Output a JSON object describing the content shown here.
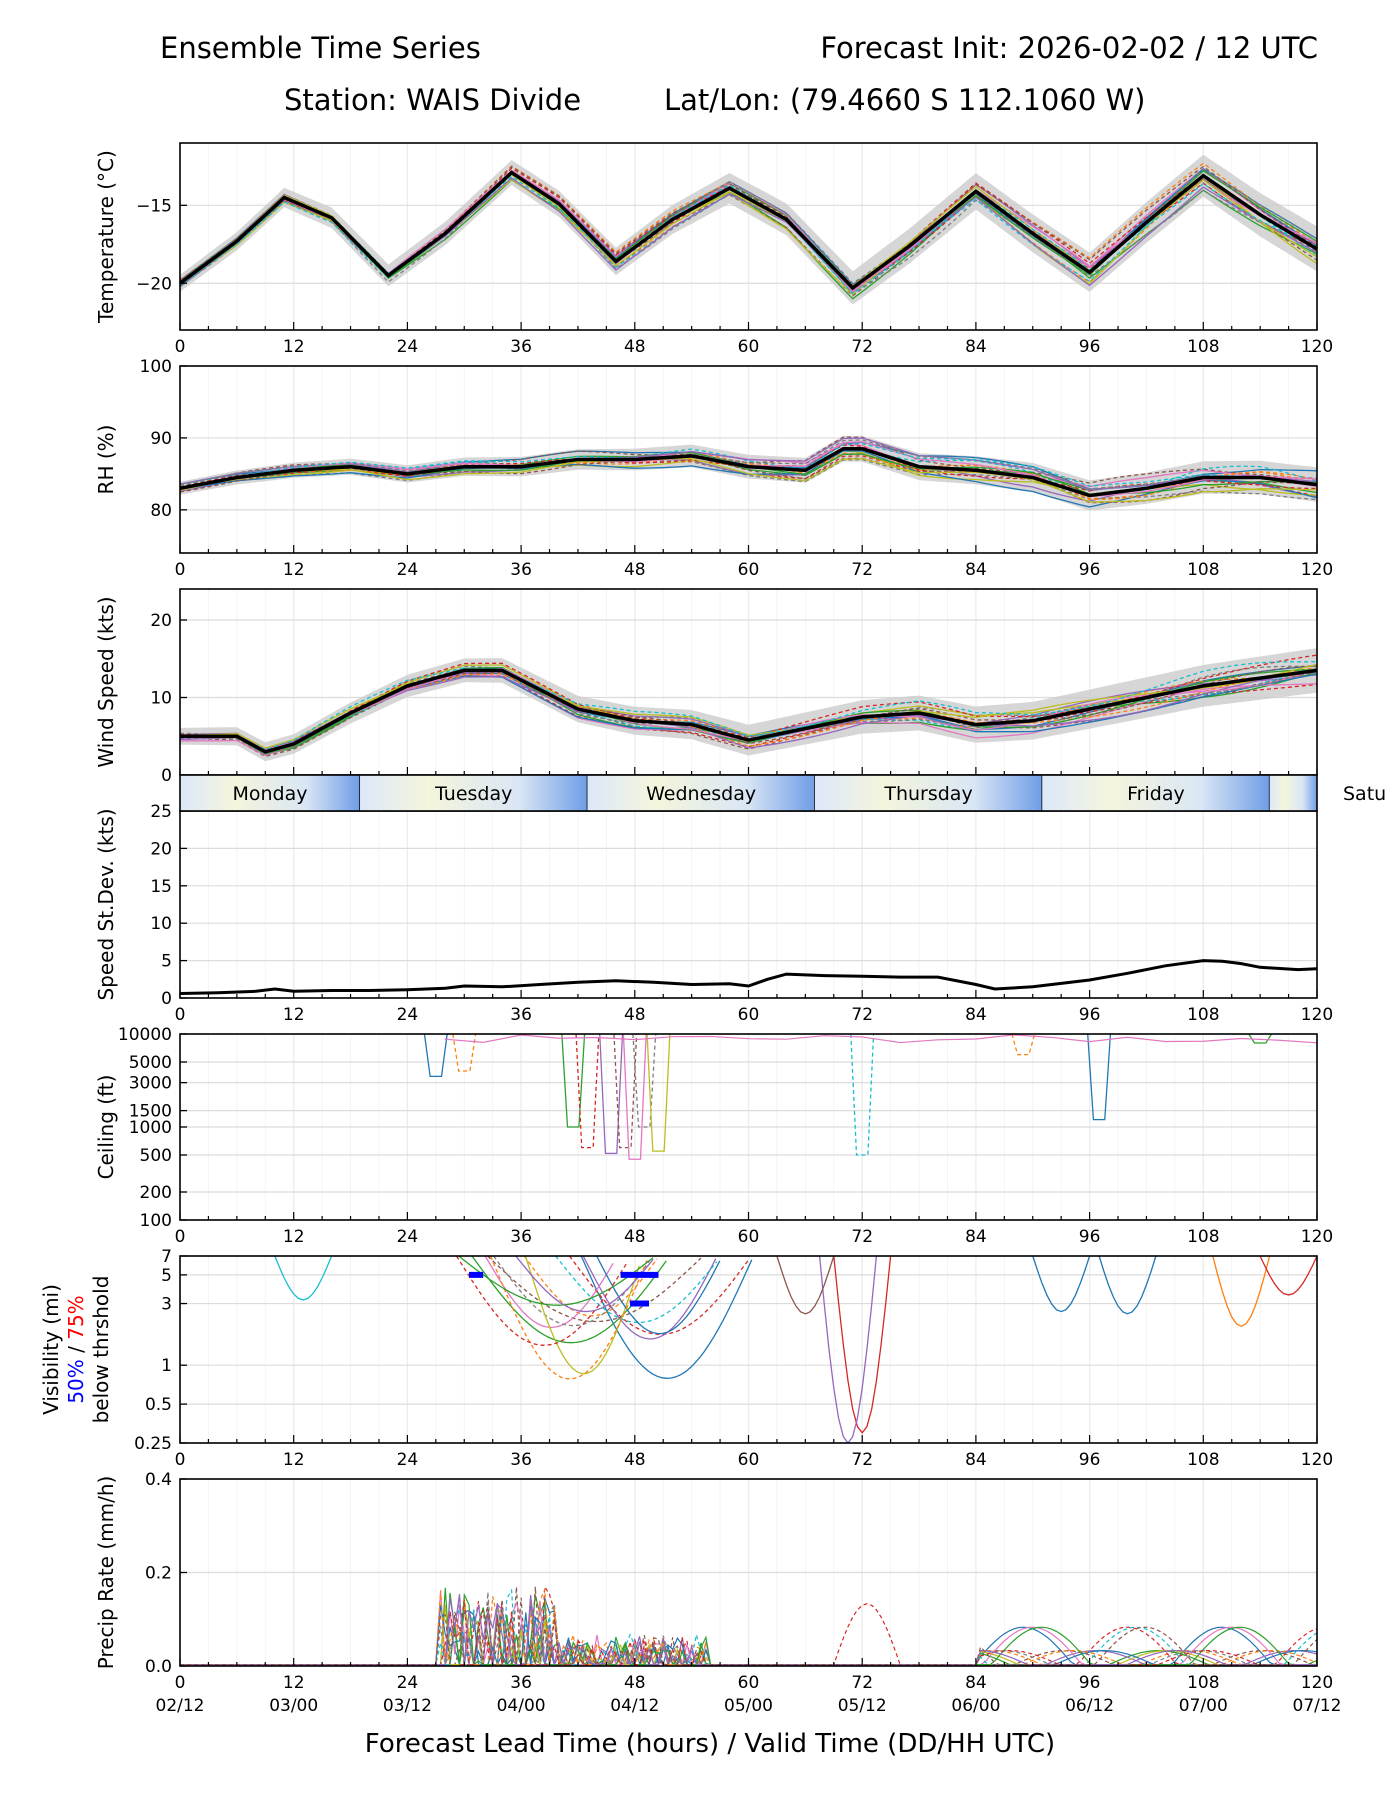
{
  "title": {
    "left": "Ensemble Time Series",
    "right": "Forecast Init: 2026-02-02 / 12 UTC",
    "station": "Station: WAIS Divide",
    "latlon": "Lat/Lon: (79.4660 S 112.1060 W)"
  },
  "xlabel": "Forecast Lead Time (hours) / Valid Time (DD/HH UTC)",
  "colors": {
    "mean": "#000000",
    "spread": "#cccccc",
    "members": [
      "#1f77b4",
      "#ff7f0e",
      "#2ca02c",
      "#d62728",
      "#9467bd",
      "#8c564b",
      "#e377c2",
      "#7f7f7f",
      "#bcbd22",
      "#17becf"
    ],
    "vis50": "#0000ff",
    "vis75": "#ff0000"
  },
  "days": [
    "Monday",
    "Tuesday",
    "Wednesday",
    "Thursday",
    "Friday",
    "Satu"
  ],
  "chart_data": [
    {
      "type": "line",
      "id": "temperature",
      "ylabel": "Temperature (°C)",
      "ylim": [
        -23,
        -11
      ],
      "yticks": [
        -20,
        -15
      ],
      "x_ticks": [
        0,
        12,
        24,
        36,
        48,
        60,
        72,
        84,
        96,
        108,
        120
      ],
      "xlim": [
        0,
        120
      ],
      "valid_time_labels": [],
      "ensemble_members": 20,
      "mean_series": {
        "x": [
          0,
          6,
          11,
          16,
          22,
          28,
          35,
          40,
          46,
          52,
          58,
          64,
          71,
          77,
          84,
          90,
          96,
          102,
          108,
          114,
          120
        ],
        "y": [
          -20,
          -17.3,
          -14.5,
          -15.8,
          -19.5,
          -16.8,
          -12.9,
          -14.9,
          -18.6,
          -15.9,
          -13.9,
          -15.9,
          -20.3,
          -17.6,
          -14.1,
          -16.8,
          -19.3,
          -16.1,
          -13.1,
          -15.6,
          -17.8
        ]
      },
      "spread": 0.9
    },
    {
      "type": "line",
      "id": "rh",
      "ylabel": "RH (%)",
      "ylim": [
        74,
        100
      ],
      "yticks": [
        80,
        90,
        100
      ],
      "x_ticks": [
        0,
        12,
        24,
        36,
        48,
        60,
        72,
        84,
        96,
        108,
        120
      ],
      "xlim": [
        0,
        120
      ],
      "ensemble_members": 20,
      "mean_series": {
        "x": [
          0,
          6,
          12,
          18,
          24,
          30,
          36,
          42,
          48,
          54,
          60,
          66,
          70,
          72,
          78,
          84,
          90,
          96,
          102,
          108,
          114,
          120
        ],
        "y": [
          83,
          84.5,
          85.5,
          86,
          85,
          86,
          86,
          87,
          87,
          87.5,
          86,
          85.5,
          88.5,
          88.5,
          86,
          85.5,
          84.5,
          82,
          83,
          84.5,
          84.5,
          83.5
        ]
      },
      "spread": 1.5
    },
    {
      "type": "line",
      "id": "wind_speed",
      "ylabel": "Wind Speed (kts)",
      "ylim": [
        0,
        24
      ],
      "yticks": [
        0,
        10,
        20
      ],
      "x_ticks": [
        0,
        12,
        24,
        36,
        48,
        60,
        72,
        84,
        96,
        108,
        120
      ],
      "xlim": [
        0,
        120
      ],
      "ensemble_members": 20,
      "mean_series": {
        "x": [
          0,
          6,
          9,
          12,
          18,
          24,
          30,
          34,
          38,
          42,
          48,
          54,
          60,
          66,
          72,
          78,
          84,
          90,
          96,
          102,
          108,
          114,
          120
        ],
        "y": [
          5,
          5,
          3,
          4,
          8,
          11.5,
          13.5,
          13.5,
          11,
          8.5,
          7,
          6.5,
          4.5,
          6,
          7.5,
          8,
          6.5,
          7,
          8.5,
          10,
          11.5,
          12.5,
          13.5
        ]
      },
      "spread": 1.8
    },
    {
      "type": "line",
      "id": "speed_stdev",
      "ylabel": "Speed St.Dev. (kts)",
      "ylim": [
        0,
        25
      ],
      "yticks": [
        0,
        5,
        10,
        15,
        20,
        25
      ],
      "x_ticks": [
        0,
        12,
        24,
        36,
        48,
        60,
        72,
        84,
        96,
        108,
        120
      ],
      "xlim": [
        0,
        120
      ],
      "series": [
        {
          "name": "Speed St.Dev.",
          "x": [
            0,
            4,
            8,
            10,
            12,
            16,
            20,
            24,
            28,
            30,
            34,
            38,
            42,
            46,
            50,
            54,
            58,
            60,
            62,
            64,
            68,
            72,
            76,
            80,
            84,
            86,
            90,
            96,
            100,
            104,
            108,
            110,
            112,
            114,
            118,
            120
          ],
          "y": [
            0.6,
            0.7,
            0.9,
            1.2,
            0.9,
            1.0,
            1.0,
            1.1,
            1.3,
            1.6,
            1.5,
            1.8,
            2.1,
            2.3,
            2.1,
            1.8,
            1.9,
            1.6,
            2.5,
            3.2,
            3.0,
            2.9,
            2.8,
            2.8,
            1.8,
            1.2,
            1.5,
            2.4,
            3.3,
            4.3,
            5.0,
            4.9,
            4.6,
            4.1,
            3.8,
            3.9
          ]
        }
      ]
    },
    {
      "type": "line",
      "id": "ceiling",
      "ylabel": "Ceiling (ft)",
      "yscale": "log",
      "ylim": [
        100,
        10000
      ],
      "yticks": [
        100,
        200,
        500,
        1000,
        1500,
        3000,
        5000,
        10000
      ],
      "x_ticks": [
        0,
        12,
        24,
        36,
        48,
        60,
        72,
        84,
        96,
        108,
        120
      ],
      "xlim": [
        0,
        120
      ],
      "ensemble_members": 12
    },
    {
      "type": "line",
      "id": "visibility",
      "ylabel": "Visibility (mi)",
      "ylabel_parts": [
        "50%",
        " / ",
        "75%",
        "below thrshold"
      ],
      "yscale": "log",
      "ylim": [
        0.25,
        7
      ],
      "yticks": [
        0.25,
        0.5,
        1,
        3,
        5,
        7
      ],
      "x_ticks": [
        0,
        12,
        24,
        36,
        48,
        60,
        72,
        84,
        96,
        108,
        120
      ],
      "xlim": [
        0,
        120
      ],
      "threshold_markers": [
        {
          "x0": 30.5,
          "x1": 32,
          "y": 5
        },
        {
          "x0": 46.5,
          "x1": 50.5,
          "y": 5
        },
        {
          "x0": 47.5,
          "x1": 49.5,
          "y": 3
        }
      ],
      "ensemble_members": 15
    },
    {
      "type": "line",
      "id": "precip",
      "ylabel": "Precip Rate (mm/h)",
      "ylim": [
        0,
        0.4
      ],
      "yticks": [
        0.0,
        0.2,
        0.4
      ],
      "x_ticks": [
        0,
        12,
        24,
        36,
        48,
        60,
        72,
        84,
        96,
        108,
        120
      ],
      "xlim": [
        0,
        120
      ],
      "valid_time_labels": [
        "02/12",
        "03/00",
        "03/12",
        "04/00",
        "04/12",
        "05/00",
        "05/12",
        "06/00",
        "06/12",
        "07/00",
        "07/12"
      ],
      "ensemble_members": 16
    }
  ]
}
